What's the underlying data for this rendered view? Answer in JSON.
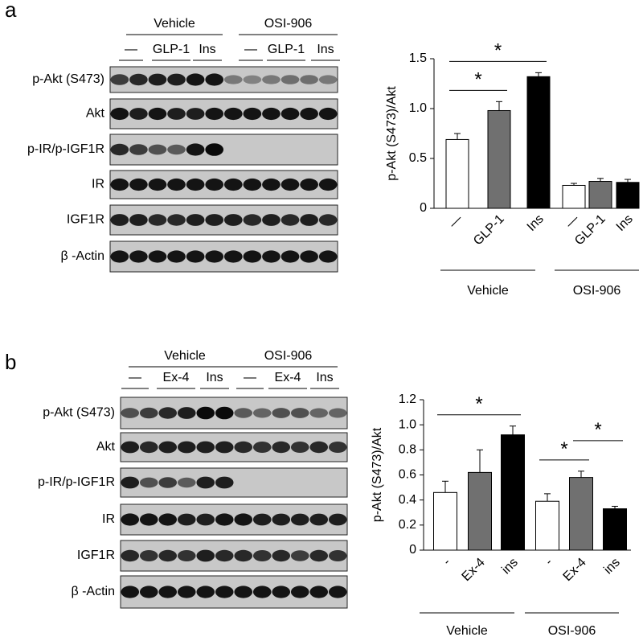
{
  "panels": [
    {
      "letter": "a",
      "groups": [
        "Vehicle",
        "OSI-906"
      ],
      "treatments": [
        "—",
        "GLP-1",
        "Ins",
        "—",
        "GLP-1",
        "Ins"
      ],
      "rows": [
        "p-Akt (S473)",
        "Akt",
        "p-IR/p-IGF1R",
        "IR",
        "IGF1R",
        "β -Actin"
      ]
    },
    {
      "letter": "b",
      "groups": [
        "Vehicle",
        "OSI-906"
      ],
      "treatments": [
        "—",
        "Ex-4",
        "Ins",
        "—",
        "Ex-4",
        "Ins"
      ],
      "rows": [
        "p-Akt (S473)",
        "Akt",
        "p-IR/p-IGF1R",
        "IR",
        "IGF1R",
        "β -Actin"
      ]
    }
  ],
  "chart_data": [
    {
      "type": "bar",
      "ylabel": "p-Akt (S473)/Akt",
      "categories": [
        "—",
        "GLP-1",
        "Ins",
        "—",
        "GLP-1",
        "Ins"
      ],
      "groups": [
        "Vehicle",
        "OSI-906"
      ],
      "values": [
        0.69,
        0.98,
        1.32,
        0.23,
        0.27,
        0.26
      ],
      "errors": [
        0.06,
        0.09,
        0.04,
        0.02,
        0.03,
        0.03
      ],
      "colors": [
        "#ffffff",
        "#707070",
        "#000000",
        "#ffffff",
        "#707070",
        "#000000"
      ],
      "ylim": [
        0,
        1.5
      ],
      "yticks": [
        0,
        0.5,
        {
          "value": 1,
          "label": "1.0"
        },
        1.5
      ],
      "brackets": [
        {
          "between": [
            0,
            1
          ],
          "label": "*"
        },
        {
          "between": [
            0,
            2
          ],
          "label": "*"
        }
      ]
    },
    {
      "type": "bar",
      "ylabel": "p-Akt (S473)/Akt",
      "categories": [
        "-",
        "Ex-4",
        "ins",
        "-",
        "Ex-4",
        "ins"
      ],
      "groups": [
        "Vehicle",
        "OSI-906"
      ],
      "values": [
        0.46,
        0.62,
        0.92,
        0.39,
        0.58,
        0.33
      ],
      "errors": [
        0.09,
        0.18,
        0.07,
        0.06,
        0.05,
        0.02
      ],
      "colors": [
        "#ffffff",
        "#707070",
        "#000000",
        "#ffffff",
        "#707070",
        "#000000"
      ],
      "ylim": [
        0,
        1.2
      ],
      "yticks": [
        0,
        0.2,
        0.4,
        0.6,
        0.8,
        {
          "value": 1,
          "label": "1.0"
        },
        1.2
      ],
      "brackets": [
        {
          "between": [
            0,
            2
          ],
          "label": "*"
        },
        {
          "between": [
            3,
            4
          ],
          "label": "*"
        },
        {
          "between": [
            4,
            5
          ],
          "label": "*"
        }
      ]
    }
  ]
}
